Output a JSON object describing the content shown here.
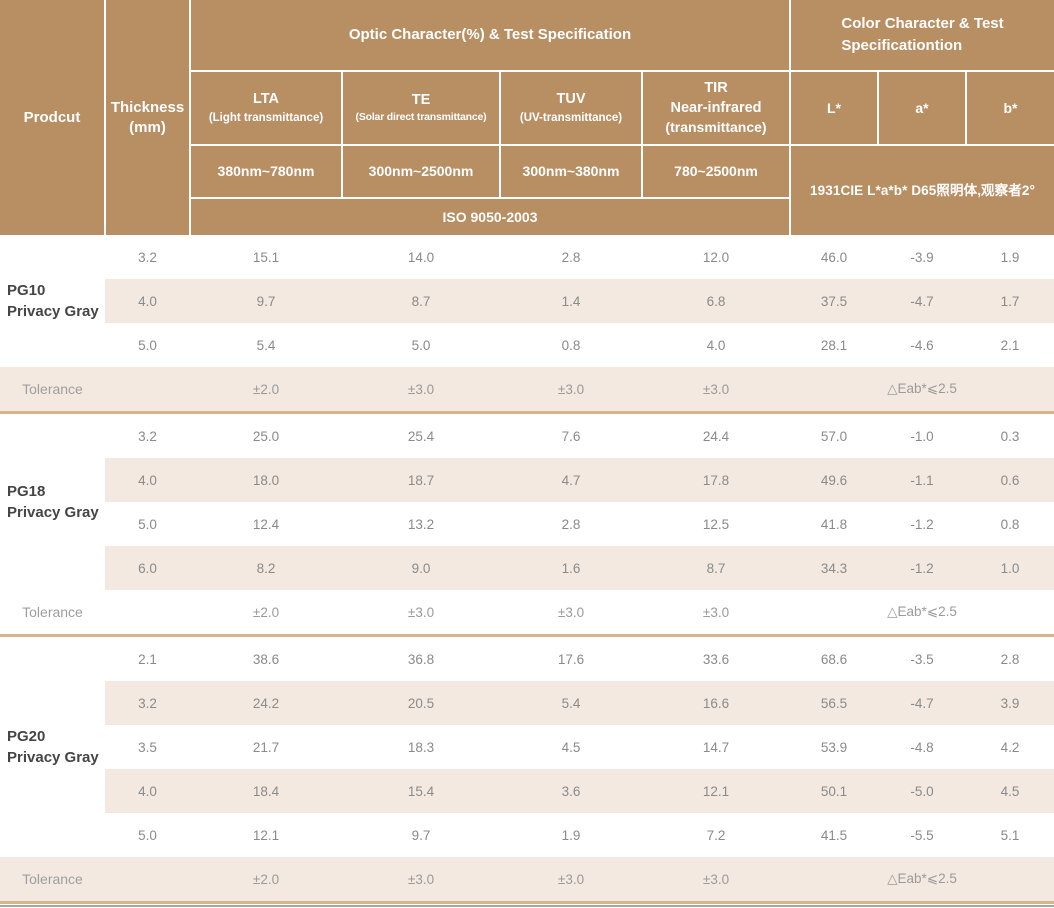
{
  "colors": {
    "header_brown": "#b88e63",
    "row_shade": "#f3e9e1",
    "section_divider": "#d6b58a",
    "bottom_line": "#a9a6a2"
  },
  "header": {
    "product": "Prodcut",
    "thickness": "Thickness\n(mm)",
    "optic_title": "Optic Character(%) & Test Specification",
    "color_title": "Color Character & Test\nSpecificationtion",
    "optic_columns": [
      {
        "name": "LTA",
        "desc": "(Light transmittance)",
        "range": "380nm~780nm"
      },
      {
        "name": "TE",
        "desc": "(Solar direct transmittance)",
        "range": "300nm~2500nm"
      },
      {
        "name": "TUV",
        "desc": "(UV-transmittance)",
        "range": "300nm~380nm"
      },
      {
        "name": "TIR\nNear-infrared",
        "desc": "(transmittance)",
        "range": "780~2500nm"
      }
    ],
    "color_columns": [
      "L*",
      "a*",
      "b*"
    ],
    "iso": "ISO 9050-2003",
    "cie": "1931CIE L*a*b*  D65照明体,观察者2°"
  },
  "sections": [
    {
      "product": "PG10\nPrivacy Gray",
      "rows": [
        [
          "3.2",
          "15.1",
          "14.0",
          "2.8",
          "12.0",
          "46.0",
          "-3.9",
          "1.9"
        ],
        [
          "4.0",
          "9.7",
          "8.7",
          "1.4",
          "6.8",
          "37.5",
          "-4.7",
          "1.7"
        ],
        [
          "5.0",
          "5.4",
          "5.0",
          "0.8",
          "4.0",
          "28.1",
          "-4.6",
          "2.1"
        ]
      ],
      "tolerance": {
        "label": "Tolerance",
        "lta": "±2.0",
        "te": "±3.0",
        "tuv": "±3.0",
        "tir": "±3.0",
        "eab": "△Eab*⩽2.5"
      }
    },
    {
      "product": "PG18\nPrivacy Gray",
      "rows": [
        [
          "3.2",
          "25.0",
          "25.4",
          "7.6",
          "24.4",
          "57.0",
          "-1.0",
          "0.3"
        ],
        [
          "4.0",
          "18.0",
          "18.7",
          "4.7",
          "17.8",
          "49.6",
          "-1.1",
          "0.6"
        ],
        [
          "5.0",
          "12.4",
          "13.2",
          "2.8",
          "12.5",
          "41.8",
          "-1.2",
          "0.8"
        ],
        [
          "6.0",
          "8.2",
          "9.0",
          "1.6",
          "8.7",
          "34.3",
          "-1.2",
          "1.0"
        ]
      ],
      "tolerance": {
        "label": "Tolerance",
        "lta": "±2.0",
        "te": "±3.0",
        "tuv": "±3.0",
        "tir": "±3.0",
        "eab": "△Eab*⩽2.5"
      }
    },
    {
      "product": "PG20\nPrivacy Gray",
      "rows": [
        [
          "2.1",
          "38.6",
          "36.8",
          "17.6",
          "33.6",
          "68.6",
          "-3.5",
          "2.8"
        ],
        [
          "3.2",
          "24.2",
          "20.5",
          "5.4",
          "16.6",
          "56.5",
          "-4.7",
          "3.9"
        ],
        [
          "3.5",
          "21.7",
          "18.3",
          "4.5",
          "14.7",
          "53.9",
          "-4.8",
          "4.2"
        ],
        [
          "4.0",
          "18.4",
          "15.4",
          "3.6",
          "12.1",
          "50.1",
          "-5.0",
          "4.5"
        ],
        [
          "5.0",
          "12.1",
          "9.7",
          "1.9",
          "7.2",
          "41.5",
          "-5.5",
          "5.1"
        ]
      ],
      "tolerance": {
        "label": "Tolerance",
        "lta": "±2.0",
        "te": "±3.0",
        "tuv": "±3.0",
        "tir": "±3.0",
        "eab": "△Eab*⩽2.5"
      }
    }
  ]
}
